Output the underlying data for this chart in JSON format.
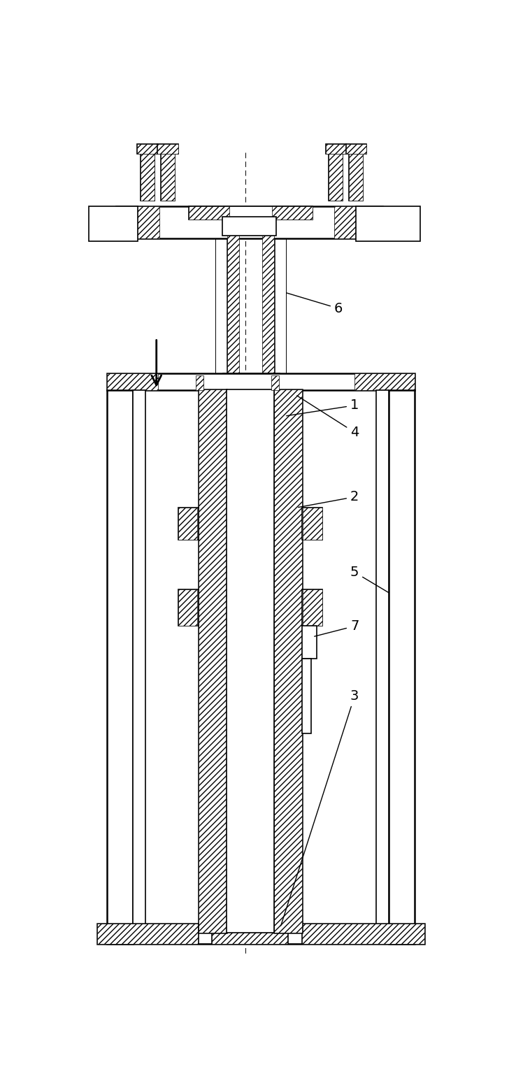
{
  "bg_color": "#ffffff",
  "line_color": "#000000",
  "fig_width": 7.28,
  "fig_height": 15.59,
  "dpi": 100,
  "lw_thin": 0.7,
  "lw_med": 1.2,
  "lw_thick": 1.8,
  "hatch_lw": 0.5
}
